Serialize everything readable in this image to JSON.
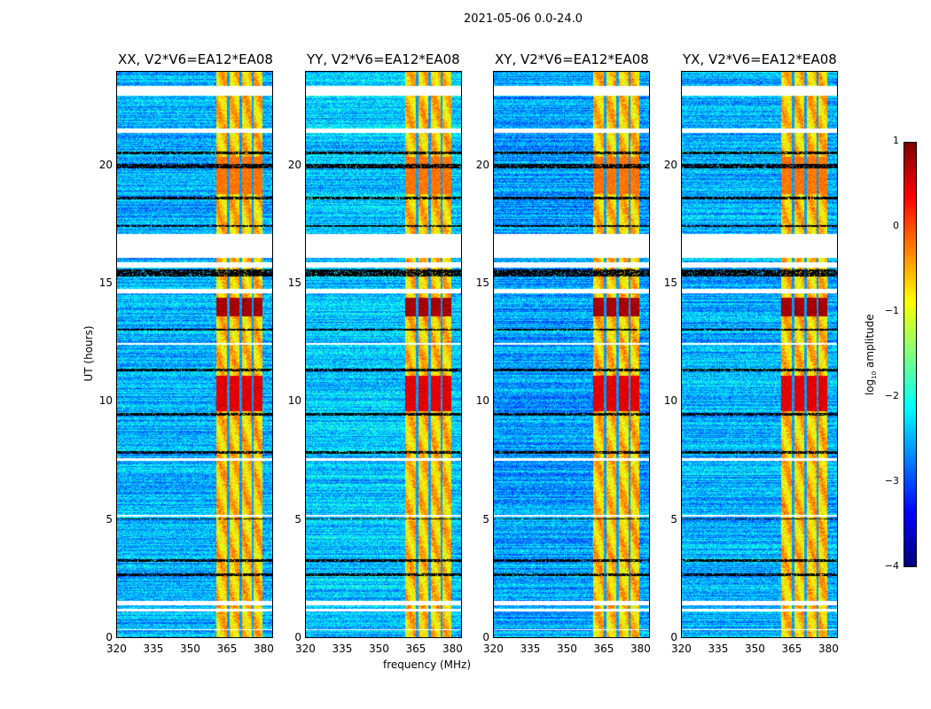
{
  "suptitle": "2021-05-06 0.0-24.0",
  "chart_data": {
    "type": "heatmap",
    "xlabel": "frequency (MHz)",
    "ylabel": "UT (hours)",
    "xlim": [
      320,
      384
    ],
    "ylim": [
      0,
      24
    ],
    "xticks": [
      "320",
      "335",
      "350",
      "365",
      "380"
    ],
    "yticks": [
      "0",
      "5",
      "10",
      "15",
      "20"
    ],
    "colormap": "jet",
    "colorbar": {
      "label": "log10 amplitude",
      "label_main": "log",
      "label_sub": "10",
      "label_rest": " amplitude",
      "range": [
        -4,
        1
      ],
      "ticks": [
        "1",
        "0",
        "−1",
        "−2",
        "−3",
        "−4"
      ]
    },
    "panels": [
      {
        "title": "XX, V2*V6=EA12*EA08",
        "background_level": -2.5
      },
      {
        "title": "YY, V2*V6=EA12*EA08",
        "background_level": -2.4
      },
      {
        "title": "XY, V2*V6=EA12*EA08",
        "background_level": -2.6
      },
      {
        "title": "YX, V2*V6=EA12*EA08",
        "background_level": -2.5
      }
    ],
    "rfi_band_mhz": [
      361,
      380
    ],
    "rfi_band_level": -0.6,
    "band_gaps_mhz": [
      366,
      371,
      376
    ],
    "strong_events": [
      {
        "ut_hours": [
          13.6,
          14.4
        ],
        "level": 0.8
      },
      {
        "ut_hours": [
          9.6,
          11.1
        ],
        "level": 0.5
      },
      {
        "ut_hours": [
          18.8,
          20.4
        ],
        "level": -0.2
      }
    ],
    "flagged_ut_hours": [
      [
        23.0,
        23.4
      ],
      [
        21.4,
        21.6
      ],
      [
        16.1,
        17.1
      ],
      [
        15.7,
        15.9
      ],
      [
        14.6,
        14.8
      ],
      [
        12.4,
        12.5
      ],
      [
        7.5,
        7.6
      ],
      [
        5.1,
        5.2
      ],
      [
        1.35,
        1.55
      ],
      [
        1.1,
        1.2
      ],
      [
        0.3,
        0.35
      ]
    ],
    "dark_ut_hours": [
      [
        15.3,
        15.6
      ],
      [
        19.9,
        20.1
      ],
      [
        20.5,
        20.6
      ],
      [
        18.6,
        18.7
      ],
      [
        17.4,
        17.5
      ],
      [
        13.0,
        13.1
      ],
      [
        11.3,
        11.4
      ],
      [
        9.4,
        9.5
      ],
      [
        7.8,
        7.9
      ],
      [
        5.0,
        5.05
      ],
      [
        3.2,
        3.3
      ],
      [
        2.6,
        2.7
      ]
    ]
  }
}
